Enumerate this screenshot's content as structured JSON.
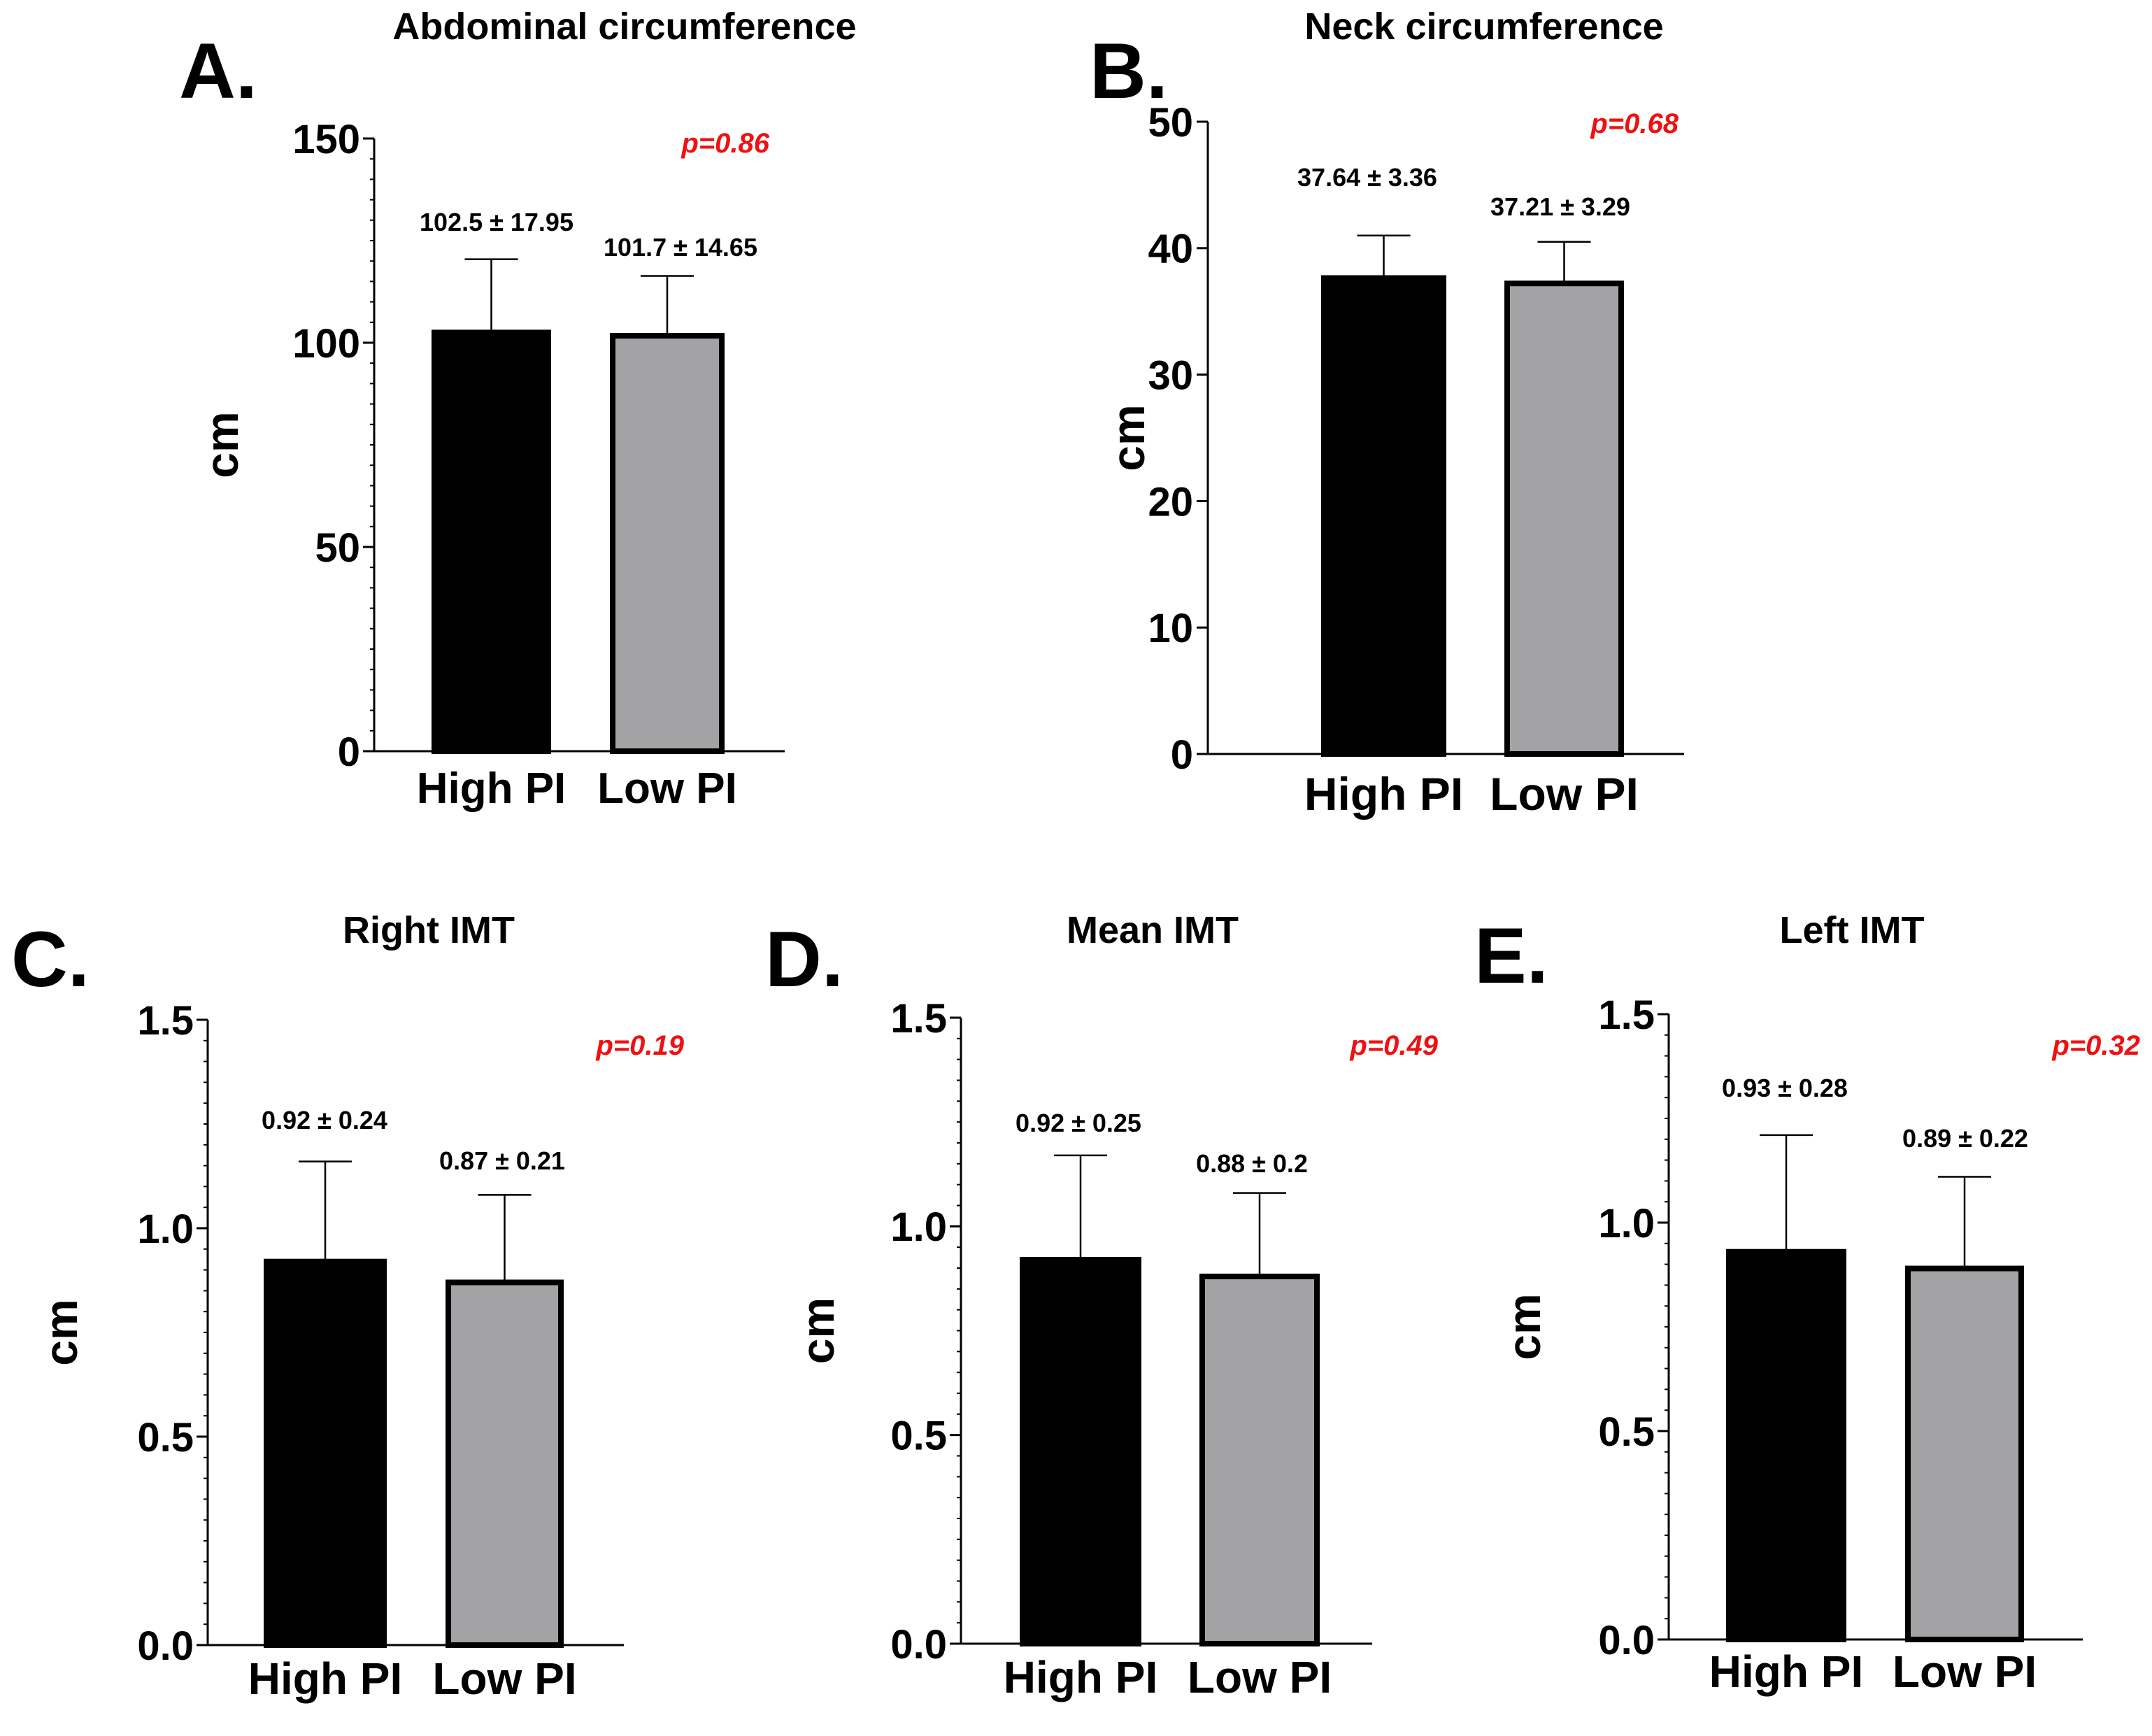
{
  "colors": {
    "high": "#000000",
    "low": "#a3a3a6",
    "axis": "#000000",
    "pvalue": "#ee1111"
  },
  "chart_data": [
    {
      "type": "bar",
      "panel_label": "A.",
      "title": "Abdominal circumference",
      "ylabel": "cm",
      "ylim": [
        0,
        150
      ],
      "yticks": [
        0,
        50,
        100,
        150
      ],
      "ytick_labels": [
        "0",
        "50",
        "100",
        "150"
      ],
      "minor_step": 5,
      "categories": [
        "High PI",
        "Low PI"
      ],
      "values": [
        102.5,
        101.7
      ],
      "errors": [
        17.95,
        14.65
      ],
      "value_labels": [
        "102.5  ± 17.95",
        "101.7 ± 14.65"
      ],
      "p_value": "p=0.86"
    },
    {
      "type": "bar",
      "panel_label": "B.",
      "title": "Neck circumference",
      "ylabel": "cm",
      "ylim": [
        0,
        50
      ],
      "yticks": [
        0,
        10,
        20,
        30,
        40,
        50
      ],
      "ytick_labels": [
        "0",
        "10",
        "20",
        "30",
        "40",
        "50"
      ],
      "minor_step": 0,
      "categories": [
        "High PI",
        "Low PI"
      ],
      "values": [
        37.64,
        37.21
      ],
      "errors": [
        3.36,
        3.29
      ],
      "value_labels": [
        "37.64  ± 3.36",
        "37.21 ± 3.29"
      ],
      "p_value": "p=0.68"
    },
    {
      "type": "bar",
      "panel_label": "C.",
      "title": "Right IMT",
      "ylabel": "cm",
      "ylim": [
        0,
        1.5
      ],
      "yticks": [
        0,
        0.5,
        1.0,
        1.5
      ],
      "ytick_labels": [
        "0.0",
        "0.5",
        "1.0",
        "1.5"
      ],
      "minor_step": 0.05,
      "categories": [
        "High PI",
        "Low PI"
      ],
      "values": [
        0.92,
        0.87
      ],
      "errors": [
        0.24,
        0.21
      ],
      "value_labels": [
        "0.92 ± 0.24",
        "0.87 ± 0.21"
      ],
      "p_value": "p=0.19"
    },
    {
      "type": "bar",
      "panel_label": "D.",
      "title": "Mean IMT",
      "ylabel": "cm",
      "ylim": [
        0,
        1.5
      ],
      "yticks": [
        0,
        0.5,
        1.0,
        1.5
      ],
      "ytick_labels": [
        "0.0",
        "0.5",
        "1.0",
        "1.5"
      ],
      "minor_step": 0.05,
      "categories": [
        "High PI",
        "Low PI"
      ],
      "values": [
        0.92,
        0.88
      ],
      "errors": [
        0.25,
        0.2
      ],
      "value_labels": [
        "0.92 ± 0.25",
        "0.88 ± 0.2"
      ],
      "p_value": "p=0.49"
    },
    {
      "type": "bar",
      "panel_label": "E.",
      "title": "Left IMT",
      "ylabel": "cm",
      "ylim": [
        0,
        1.5
      ],
      "yticks": [
        0,
        0.5,
        1.0,
        1.5
      ],
      "ytick_labels": [
        "0.0",
        "0.5",
        "1.0",
        "1.5"
      ],
      "minor_step": 0.05,
      "categories": [
        "High PI",
        "Low PI"
      ],
      "values": [
        0.93,
        0.89
      ],
      "errors": [
        0.28,
        0.22
      ],
      "value_labels": [
        "0.93 ± 0.28",
        "0.89 ± 0.22"
      ],
      "p_value": "p=0.32"
    }
  ]
}
